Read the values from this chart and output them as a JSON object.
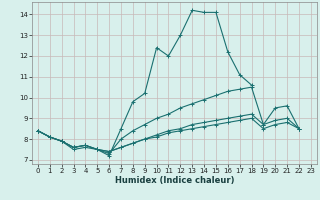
{
  "xlabel": "Humidex (Indice chaleur)",
  "ylabel": "",
  "xlim": [
    -0.5,
    23.5
  ],
  "ylim": [
    6.8,
    14.6
  ],
  "yticks": [
    7,
    8,
    9,
    10,
    11,
    12,
    13,
    14
  ],
  "xticks": [
    0,
    1,
    2,
    3,
    4,
    5,
    6,
    7,
    8,
    9,
    10,
    11,
    12,
    13,
    14,
    15,
    16,
    17,
    18,
    19,
    20,
    21,
    22,
    23
  ],
  "bg_color": "#d8f0ec",
  "grid_color": "#c8d8d4",
  "line_color": "#1a7070",
  "series": [
    [
      8.4,
      8.1,
      7.9,
      7.5,
      7.6,
      7.5,
      7.2,
      8.5,
      9.8,
      10.2,
      12.4,
      12.0,
      13.0,
      14.2,
      14.1,
      14.1,
      12.2,
      11.1,
      10.6,
      null,
      null,
      null,
      null,
      null
    ],
    [
      8.4,
      8.1,
      7.9,
      7.6,
      7.7,
      7.5,
      7.3,
      8.0,
      8.4,
      8.7,
      9.0,
      9.2,
      9.5,
      9.7,
      9.9,
      10.1,
      10.3,
      10.4,
      10.5,
      8.7,
      9.5,
      9.6,
      8.5,
      null
    ],
    [
      8.4,
      8.1,
      7.9,
      7.6,
      7.7,
      7.5,
      7.4,
      7.6,
      7.8,
      8.0,
      8.2,
      8.4,
      8.5,
      8.7,
      8.8,
      8.9,
      9.0,
      9.1,
      9.2,
      8.7,
      8.9,
      9.0,
      8.5,
      null
    ],
    [
      8.4,
      8.1,
      7.9,
      7.6,
      7.7,
      7.5,
      7.4,
      7.6,
      7.8,
      8.0,
      8.1,
      8.3,
      8.4,
      8.5,
      8.6,
      8.7,
      8.8,
      8.9,
      9.0,
      8.5,
      8.7,
      8.8,
      8.5,
      null
    ]
  ],
  "grid_color_x": "#c8b8b8",
  "grid_color_y": "#c8b8b8"
}
